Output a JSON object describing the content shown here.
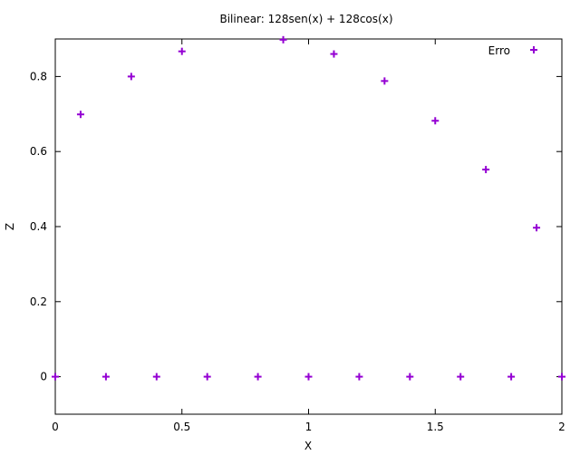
{
  "chart_data": {
    "type": "scatter",
    "title": "Bilinear: 128sen(x) + 128cos(x)",
    "xlabel": "X",
    "ylabel": "Z",
    "xlim": [
      0,
      2
    ],
    "ylim": [
      -0.1,
      0.9
    ],
    "x_ticks": [
      0,
      0.5,
      1,
      1.5,
      2
    ],
    "x_tick_labels": [
      "0",
      "0.5",
      "1",
      "1.5",
      "2"
    ],
    "y_ticks": [
      0,
      0.2,
      0.4,
      0.6,
      0.8
    ],
    "y_tick_labels": [
      "0",
      "0.2",
      "0.4",
      "0.6",
      "0.8"
    ],
    "grid": false,
    "legend": {
      "position": "top-right"
    },
    "series": [
      {
        "name": "Erro",
        "color": "#9400d3",
        "marker": "plus",
        "x": [
          0,
          0.1,
          0.2,
          0.3,
          0.4,
          0.5,
          0.6,
          0.8,
          0.9,
          1.0,
          1.1,
          1.2,
          1.3,
          1.4,
          1.5,
          1.6,
          1.7,
          1.8,
          1.9,
          2.0
        ],
        "y": [
          0,
          0.699,
          0,
          0.8,
          0,
          0.867,
          0,
          0,
          0.898,
          0,
          0.86,
          0,
          0.788,
          0,
          0.682,
          0,
          0.552,
          0,
          0.397,
          0
        ]
      }
    ]
  }
}
